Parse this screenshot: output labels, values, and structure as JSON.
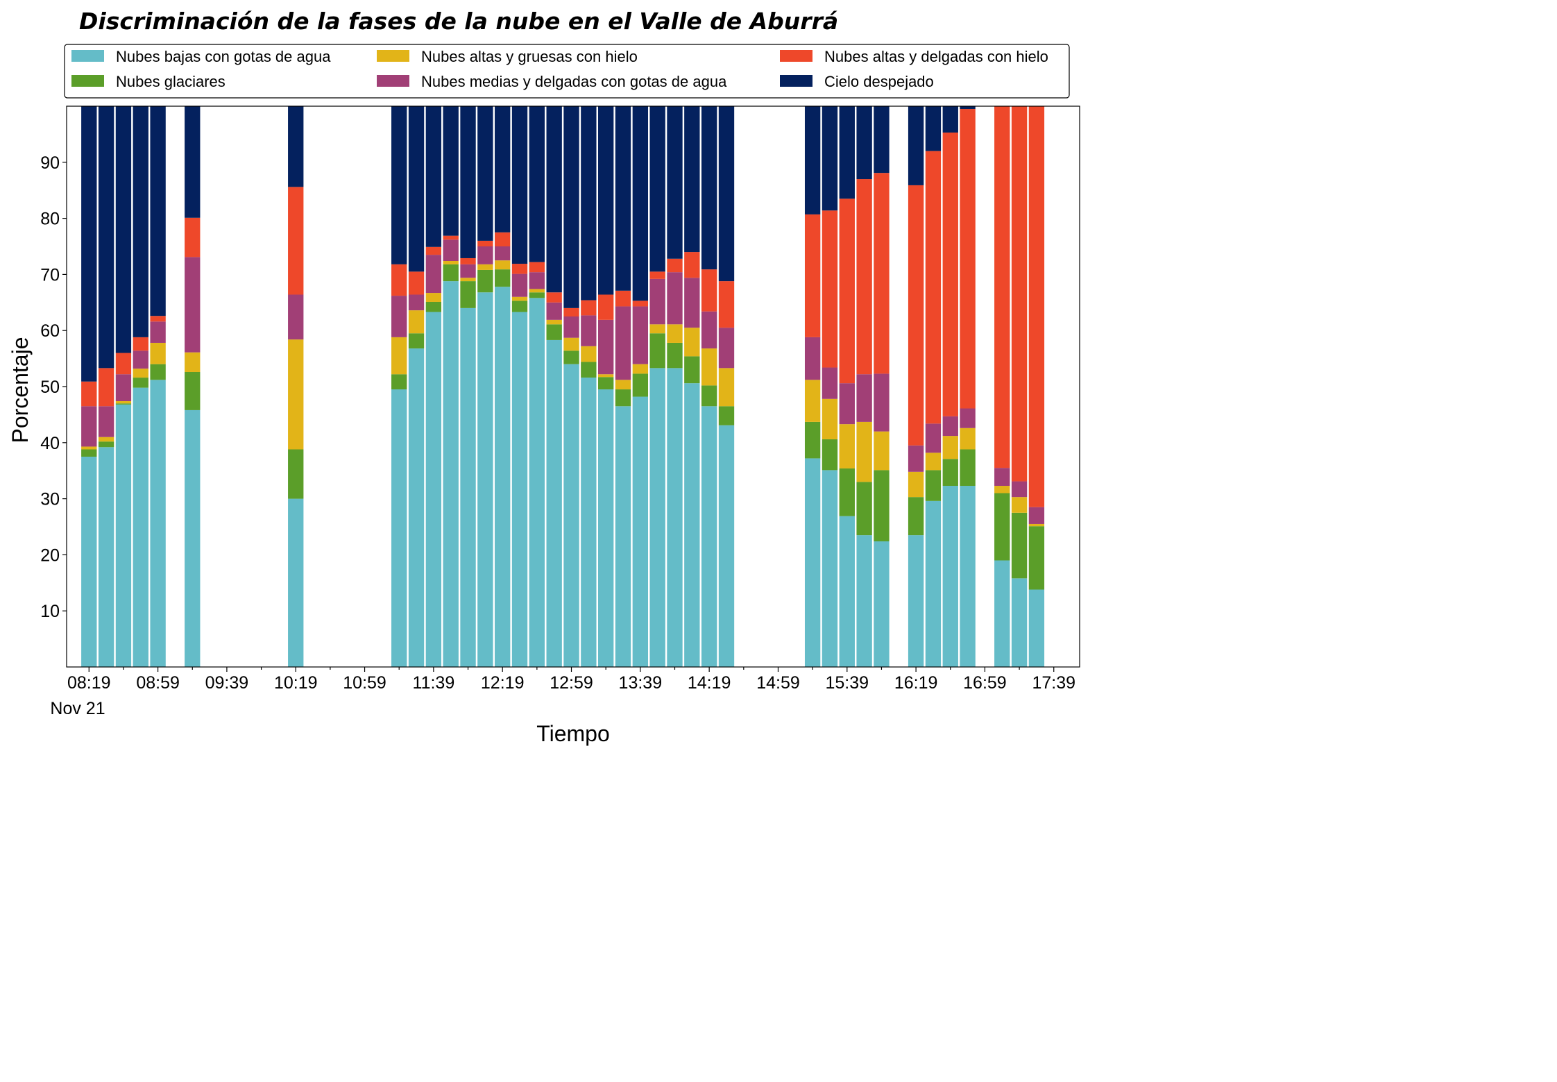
{
  "chart_data": {
    "type": "stacked-bar",
    "title": "Discriminación de la fases de la nube en el Valle de Aburrá",
    "xlabel": "Tiempo",
    "ylabel": "Porcentaje",
    "ylim": [
      0,
      100
    ],
    "yticks": [
      10,
      20,
      30,
      40,
      50,
      60,
      70,
      80,
      90
    ],
    "date_label": "Nov 21",
    "xlim_minutes": [
      "08:06",
      "17:54"
    ],
    "xtick_labels": [
      "08:19",
      "08:59",
      "09:39",
      "10:19",
      "10:59",
      "11:39",
      "12:19",
      "12:59",
      "13:39",
      "14:19",
      "14:59",
      "15:39",
      "16:19",
      "16:59",
      "17:39"
    ],
    "legend_position": "top (above plot), 3 columns",
    "grid": false,
    "series": [
      {
        "name": "Nubes bajas con gotas de agua",
        "color": "#64BCC8"
      },
      {
        "name": "Nubes glaciares",
        "color": "#5B9E29"
      },
      {
        "name": "Nubes altas y gruesas con hielo",
        "color": "#E2B418"
      },
      {
        "name": "Nubes medias y delgadas con gotas de agua",
        "color": "#A13F76"
      },
      {
        "name": "Nubes altas y delgadas con hielo",
        "color": "#EE482A"
      },
      {
        "name": "Cielo despejado",
        "color": "#04215E"
      }
    ],
    "bars": [
      {
        "time": "08:19",
        "values": [
          37.5,
          1.3,
          0.5,
          7.2,
          4.4,
          49.1
        ]
      },
      {
        "time": "08:29",
        "values": [
          39.2,
          1.0,
          0.8,
          5.5,
          6.8,
          46.7
        ]
      },
      {
        "time": "08:39",
        "values": [
          46.8,
          0.2,
          0.4,
          4.8,
          3.8,
          44.0
        ]
      },
      {
        "time": "08:49",
        "values": [
          49.8,
          1.8,
          1.6,
          3.2,
          2.4,
          41.2
        ]
      },
      {
        "time": "08:59",
        "values": [
          51.2,
          2.8,
          3.8,
          3.8,
          1.0,
          37.4
        ]
      },
      {
        "time": "09:19",
        "values": [
          45.8,
          6.8,
          3.5,
          17.0,
          7.0,
          19.9
        ]
      },
      {
        "time": "10:19",
        "values": [
          30.0,
          8.8,
          19.6,
          8.0,
          19.2,
          14.4
        ]
      },
      {
        "time": "11:19",
        "values": [
          49.5,
          2.7,
          6.6,
          7.4,
          5.6,
          28.2
        ]
      },
      {
        "time": "11:29",
        "values": [
          56.8,
          2.7,
          4.1,
          2.8,
          4.1,
          29.5
        ]
      },
      {
        "time": "11:39",
        "values": [
          63.3,
          1.8,
          1.6,
          6.8,
          1.4,
          25.1
        ]
      },
      {
        "time": "11:49",
        "values": [
          68.8,
          3.0,
          0.6,
          3.8,
          0.7,
          23.1
        ]
      },
      {
        "time": "11:59",
        "values": [
          64.0,
          4.8,
          0.6,
          2.4,
          1.1,
          27.1
        ]
      },
      {
        "time": "12:09",
        "values": [
          66.8,
          4.0,
          1.0,
          3.2,
          1.0,
          24.0
        ]
      },
      {
        "time": "12:19",
        "values": [
          67.8,
          3.1,
          1.6,
          2.5,
          2.5,
          22.5
        ]
      },
      {
        "time": "12:29",
        "values": [
          63.3,
          2.0,
          0.7,
          4.1,
          1.8,
          28.1
        ]
      },
      {
        "time": "12:39",
        "values": [
          65.8,
          1.0,
          0.6,
          3.0,
          1.8,
          27.8
        ]
      },
      {
        "time": "12:49",
        "values": [
          58.3,
          2.8,
          0.8,
          3.1,
          1.8,
          33.2
        ]
      },
      {
        "time": "12:59",
        "values": [
          54.0,
          2.4,
          2.3,
          3.8,
          1.5,
          36.0
        ]
      },
      {
        "time": "13:09",
        "values": [
          51.6,
          2.8,
          2.8,
          5.5,
          2.7,
          34.6
        ]
      },
      {
        "time": "13:19",
        "values": [
          49.5,
          2.2,
          0.5,
          9.7,
          4.5,
          33.6
        ]
      },
      {
        "time": "13:29",
        "values": [
          46.5,
          3.0,
          1.7,
          13.1,
          2.8,
          32.9
        ]
      },
      {
        "time": "13:39",
        "values": [
          48.2,
          4.1,
          1.7,
          10.3,
          1.0,
          34.7
        ]
      },
      {
        "time": "13:49",
        "values": [
          53.3,
          6.2,
          1.6,
          8.1,
          1.3,
          29.5
        ]
      },
      {
        "time": "13:59",
        "values": [
          53.3,
          4.5,
          3.3,
          9.3,
          2.4,
          27.2
        ]
      },
      {
        "time": "14:09",
        "values": [
          50.6,
          4.8,
          5.1,
          8.9,
          4.6,
          26.0
        ]
      },
      {
        "time": "14:19",
        "values": [
          46.5,
          3.7,
          6.6,
          6.6,
          7.5,
          29.1
        ]
      },
      {
        "time": "14:29",
        "values": [
          43.1,
          3.4,
          6.8,
          7.2,
          8.3,
          31.2
        ]
      },
      {
        "time": "15:19",
        "values": [
          37.2,
          6.5,
          7.5,
          7.6,
          21.9,
          19.3
        ]
      },
      {
        "time": "15:29",
        "values": [
          35.1,
          5.5,
          7.2,
          5.6,
          28.0,
          18.6
        ]
      },
      {
        "time": "15:39",
        "values": [
          26.9,
          8.5,
          7.9,
          7.3,
          32.9,
          16.5
        ]
      },
      {
        "time": "15:49",
        "values": [
          23.5,
          9.5,
          10.7,
          8.5,
          34.8,
          13.0
        ]
      },
      {
        "time": "15:59",
        "values": [
          22.4,
          12.7,
          6.9,
          10.3,
          35.8,
          11.9
        ]
      },
      {
        "time": "16:19",
        "values": [
          23.5,
          6.8,
          4.5,
          4.7,
          46.4,
          14.1
        ]
      },
      {
        "time": "16:29",
        "values": [
          29.6,
          5.5,
          3.1,
          5.2,
          48.6,
          8.0
        ]
      },
      {
        "time": "16:39",
        "values": [
          32.3,
          4.8,
          4.1,
          3.5,
          50.6,
          4.7
        ]
      },
      {
        "time": "16:49",
        "values": [
          32.3,
          6.5,
          3.8,
          3.5,
          53.4,
          0.5
        ]
      },
      {
        "time": "17:09",
        "values": [
          19.0,
          12.0,
          1.3,
          3.2,
          64.5,
          0
        ]
      },
      {
        "time": "17:19",
        "values": [
          15.8,
          11.7,
          2.8,
          2.8,
          67.2,
          0
        ]
      },
      {
        "time": "17:29",
        "values": [
          13.8,
          11.3,
          0.4,
          3.0,
          71.5,
          0
        ]
      }
    ]
  }
}
